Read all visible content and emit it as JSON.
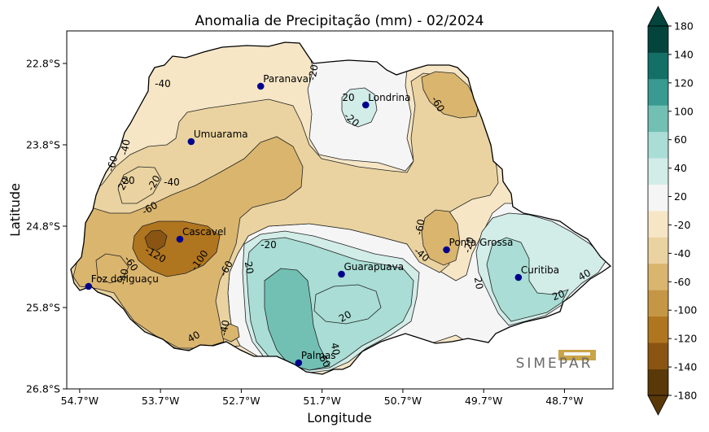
{
  "chart_data": {
    "type": "contour-map",
    "title": "Anomalia de Precipitação (mm) - 02/2024",
    "xlabel": "Longitude",
    "ylabel": "Latitude",
    "xlim": [
      -54.86,
      -48.1
    ],
    "ylim": [
      -26.8,
      -22.4
    ],
    "x_ticks": [
      {
        "value": -54.7,
        "label": "54.7°W"
      },
      {
        "value": -53.7,
        "label": "53.7°W"
      },
      {
        "value": -52.7,
        "label": "52.7°W"
      },
      {
        "value": -51.7,
        "label": "51.7°W"
      },
      {
        "value": -50.7,
        "label": "50.7°W"
      },
      {
        "value": -49.7,
        "label": "49.7°W"
      },
      {
        "value": -48.7,
        "label": "48.7°W"
      }
    ],
    "y_ticks": [
      {
        "value": -22.8,
        "label": "22.8°S"
      },
      {
        "value": -23.8,
        "label": "23.8°S"
      },
      {
        "value": -24.8,
        "label": "24.8°S"
      },
      {
        "value": -25.8,
        "label": "25.8°S"
      },
      {
        "value": -26.8,
        "label": "26.8°S"
      }
    ],
    "colorbar": {
      "levels": [
        -180,
        -140,
        -120,
        -100,
        -60,
        -40,
        -20,
        20,
        40,
        60,
        100,
        120,
        140,
        180
      ],
      "labels": [
        "180",
        "140",
        "120",
        "100",
        "60",
        "40",
        "20",
        "-20",
        "-40",
        "-60",
        "-100",
        "-120",
        "-140",
        "-180"
      ],
      "colors": [
        "#5a3808",
        "#8a5512",
        "#b0751f",
        "#c59645",
        "#dab56e",
        "#ead3a0",
        "#f6e6c6",
        "#f5f5f5",
        "#d2ece8",
        "#a9ddd5",
        "#72c0b4",
        "#389a90",
        "#147067",
        "#03453d"
      ],
      "extend": "both"
    },
    "cities": [
      {
        "name": "Paranavaí",
        "lon": -52.46,
        "lat": -23.08
      },
      {
        "name": "Londrina",
        "lon": -51.16,
        "lat": -23.31
      },
      {
        "name": "Umuarama",
        "lon": -53.32,
        "lat": -23.76
      },
      {
        "name": "Cascavel",
        "lon": -53.46,
        "lat": -24.96
      },
      {
        "name": "Ponta Grossa",
        "lon": -50.16,
        "lat": -25.09
      },
      {
        "name": "Guarapuava",
        "lon": -51.46,
        "lat": -25.39
      },
      {
        "name": "Curitiba",
        "lon": -49.27,
        "lat": -25.43
      },
      {
        "name": "Foz do Iguaçu",
        "lon": -54.59,
        "lat": -25.54
      },
      {
        "name": "Palmas",
        "lon": -51.99,
        "lat": -26.48
      }
    ],
    "contour_labels": [
      "-40",
      "-20",
      "-20",
      "20",
      "-60",
      "-60",
      "-40",
      "20",
      "-20",
      "-60",
      "-40",
      "-120",
      "-100",
      "-60",
      "-40",
      "-60",
      "-20",
      "-40",
      "-60",
      "-40",
      "20",
      "20",
      "40",
      "60",
      "20",
      "40",
      "20",
      "20",
      "40",
      "-20"
    ]
  },
  "logo_text": "SIMEPAR"
}
